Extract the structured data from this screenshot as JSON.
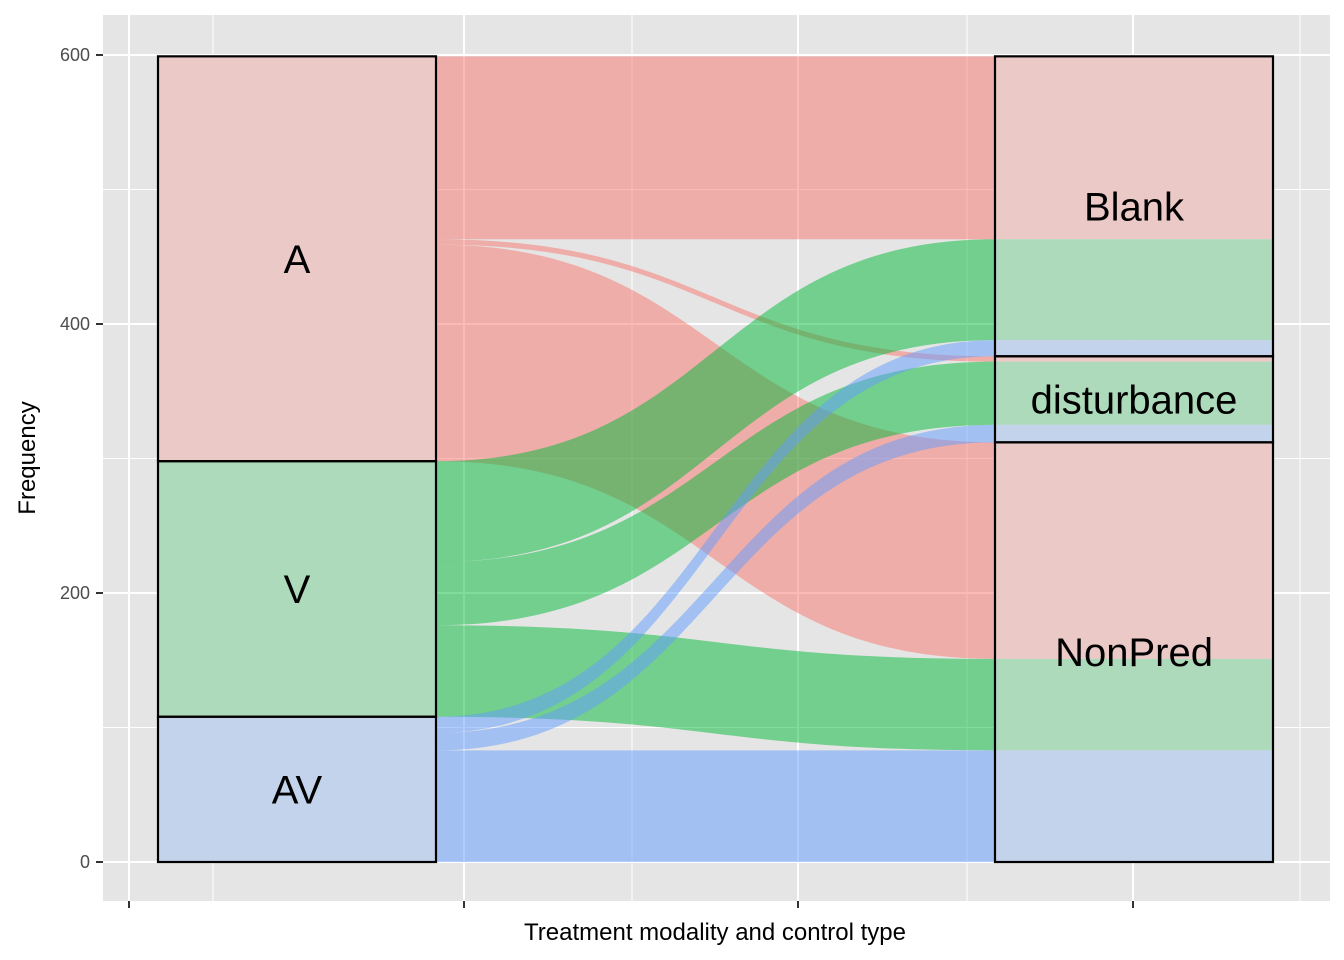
{
  "chart_data": {
    "type": "alluvial",
    "title": "",
    "xlabel": "Treatment modality and control type",
    "ylabel": "Frequency",
    "ylim": [
      -35,
      625
    ],
    "yticks": [
      0,
      200,
      400,
      600
    ],
    "grid": true,
    "axes": [
      {
        "name": "",
        "strata": [
          "A",
          "V",
          "AV"
        ]
      },
      {
        "name": "",
        "strata": [
          "Blank",
          "disturbance",
          "NonPred"
        ]
      }
    ],
    "left_strata": [
      {
        "label": "A",
        "value": 301
      },
      {
        "label": "V",
        "value": 190
      },
      {
        "label": "AV",
        "value": 108
      }
    ],
    "right_strata": [
      {
        "label": "Blank",
        "value": 223
      },
      {
        "label": "disturbance",
        "value": 64
      },
      {
        "label": "NonPred",
        "value": 312
      }
    ],
    "flows": [
      {
        "from": "A",
        "to": "Blank",
        "value": 136,
        "color": "#F8766D"
      },
      {
        "from": "A",
        "to": "disturbance",
        "value": 4,
        "color": "#F8766D"
      },
      {
        "from": "A",
        "to": "NonPred",
        "value": 161,
        "color": "#F8766D"
      },
      {
        "from": "V",
        "to": "Blank",
        "value": 75,
        "color": "#00BA38"
      },
      {
        "from": "V",
        "to": "disturbance",
        "value": 47,
        "color": "#00BA38"
      },
      {
        "from": "V",
        "to": "NonPred",
        "value": 68,
        "color": "#00BA38"
      },
      {
        "from": "AV",
        "to": "Blank",
        "value": 12,
        "color": "#619CFF"
      },
      {
        "from": "AV",
        "to": "disturbance",
        "value": 13,
        "color": "#619CFF"
      },
      {
        "from": "AV",
        "to": "NonPred",
        "value": 83,
        "color": "#619CFF"
      }
    ],
    "colors": {
      "A": "#F8766D",
      "V": "#00BA38",
      "AV": "#619CFF"
    },
    "panel_background": "#E5E5E5",
    "grid_color": "#FFFFFF"
  }
}
